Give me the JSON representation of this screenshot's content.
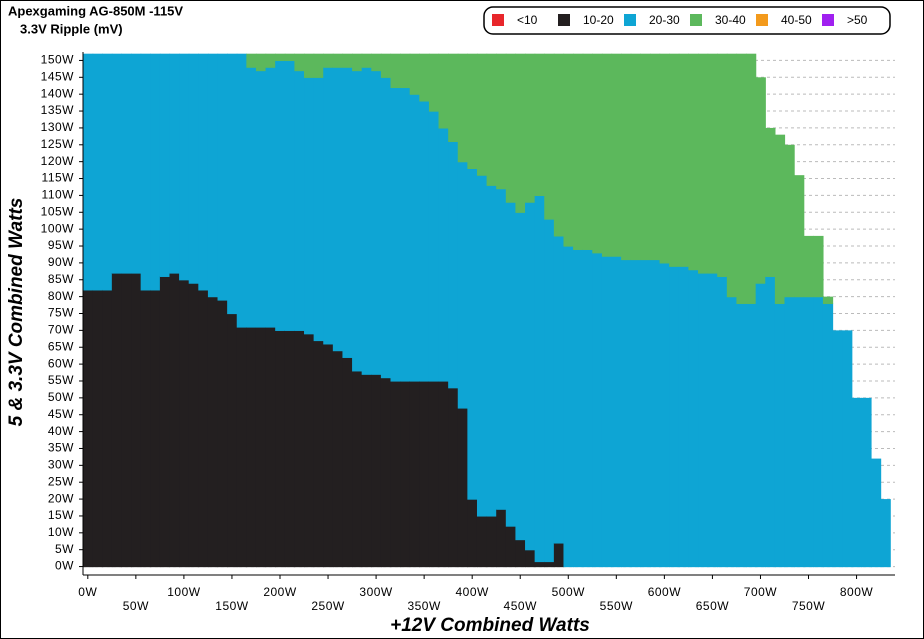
{
  "chart_data": {
    "type": "stacked_columns",
    "title": "Apexgaming AG-850M -115V",
    "subtitle": "3.3V Ripple (mV)",
    "xlabel": "+12V Combined Watts",
    "ylabel": "5 & 3.3V Combined Watts",
    "legend": "upper right",
    "grid": true,
    "xlim": [
      -5,
      840
    ],
    "ylim": [
      -2.5,
      152.5
    ],
    "xticks": [
      {
        "value": 0,
        "label": "0W"
      },
      {
        "value": 50,
        "label": "50W"
      },
      {
        "value": 100,
        "label": "100W"
      },
      {
        "value": 150,
        "label": "150W"
      },
      {
        "value": 200,
        "label": "200W"
      },
      {
        "value": 250,
        "label": "250W"
      },
      {
        "value": 300,
        "label": "300W"
      },
      {
        "value": 350,
        "label": "350W"
      },
      {
        "value": 400,
        "label": "400W"
      },
      {
        "value": 450,
        "label": "450W"
      },
      {
        "value": 500,
        "label": "500W"
      },
      {
        "value": 550,
        "label": "550W"
      },
      {
        "value": 600,
        "label": "600W"
      },
      {
        "value": 650,
        "label": "650W"
      },
      {
        "value": 700,
        "label": "700W"
      },
      {
        "value": 750,
        "label": "750W"
      },
      {
        "value": 800,
        "label": "800W"
      }
    ],
    "yticks": [
      {
        "value": 0,
        "label": "0W"
      },
      {
        "value": 5,
        "label": "5W"
      },
      {
        "value": 10,
        "label": "10W"
      },
      {
        "value": 15,
        "label": "15W"
      },
      {
        "value": 20,
        "label": "20W"
      },
      {
        "value": 25,
        "label": "25W"
      },
      {
        "value": 30,
        "label": "30W"
      },
      {
        "value": 35,
        "label": "35W"
      },
      {
        "value": 40,
        "label": "40W"
      },
      {
        "value": 45,
        "label": "45W"
      },
      {
        "value": 50,
        "label": "50W"
      },
      {
        "value": 55,
        "label": "55W"
      },
      {
        "value": 60,
        "label": "60W"
      },
      {
        "value": 65,
        "label": "65W"
      },
      {
        "value": 70,
        "label": "70W"
      },
      {
        "value": 75,
        "label": "75W"
      },
      {
        "value": 80,
        "label": "80W"
      },
      {
        "value": 85,
        "label": "85W"
      },
      {
        "value": 90,
        "label": "90W"
      },
      {
        "value": 95,
        "label": "95W"
      },
      {
        "value": 100,
        "label": "100W"
      },
      {
        "value": 105,
        "label": "105W"
      },
      {
        "value": 110,
        "label": "110W"
      },
      {
        "value": 115,
        "label": "115W"
      },
      {
        "value": 120,
        "label": "120W"
      },
      {
        "value": 125,
        "label": "125W"
      },
      {
        "value": 130,
        "label": "130W"
      },
      {
        "value": 135,
        "label": "135W"
      },
      {
        "value": 140,
        "label": "140W"
      },
      {
        "value": 145,
        "label": "145W"
      },
      {
        "value": 150,
        "label": "150W"
      }
    ],
    "x": [
      0,
      10,
      20,
      30,
      40,
      50,
      60,
      70,
      80,
      90,
      100,
      110,
      120,
      130,
      140,
      150,
      160,
      170,
      180,
      190,
      200,
      210,
      220,
      230,
      240,
      250,
      260,
      270,
      280,
      290,
      300,
      310,
      320,
      330,
      340,
      350,
      360,
      370,
      380,
      390,
      400,
      410,
      420,
      430,
      440,
      450,
      460,
      470,
      480,
      490,
      500,
      510,
      520,
      530,
      540,
      550,
      560,
      570,
      580,
      590,
      600,
      610,
      620,
      630,
      640,
      650,
      660,
      670,
      680,
      690,
      700,
      710,
      720,
      730,
      740,
      750,
      760,
      770,
      780,
      790,
      800,
      810,
      820,
      830
    ],
    "series": [
      {
        "name": "<10",
        "color": "#e8262b"
      },
      {
        "name": "10-20",
        "color": "#231f20",
        "values": [
          82,
          82,
          82,
          87,
          87,
          87,
          82,
          82,
          86,
          87,
          85,
          84,
          82,
          80,
          79,
          75,
          71,
          71,
          71,
          71,
          70,
          70,
          70,
          69,
          67,
          66,
          64,
          62,
          58,
          57,
          57,
          56,
          55,
          55,
          55,
          55,
          55,
          55,
          53,
          47,
          20,
          15,
          15,
          17,
          12,
          8,
          5,
          1.5,
          1.5,
          7,
          0,
          0,
          0,
          0,
          0,
          0,
          0,
          0,
          0,
          0,
          0,
          0,
          0,
          0,
          0,
          0,
          0,
          0,
          0,
          0,
          0,
          0,
          0,
          0,
          0,
          0,
          0,
          0,
          0,
          0,
          0,
          0,
          0,
          0
        ]
      },
      {
        "name": "20-30",
        "color": "#0ea5d4",
        "values": [
          70,
          70,
          70,
          65,
          65,
          65,
          70,
          70,
          66,
          65,
          67,
          68,
          70,
          72,
          73,
          77,
          81,
          77,
          76,
          77,
          80,
          80,
          77,
          76,
          78,
          82,
          84,
          86,
          89,
          91,
          90,
          89,
          87,
          87,
          85,
          83,
          80,
          75,
          73,
          73,
          98,
          101,
          98,
          95,
          96,
          97,
          103,
          108.5,
          101.5,
          91,
          95,
          94,
          94,
          93,
          92,
          92,
          91,
          91,
          91,
          91,
          90,
          89,
          89,
          88,
          87,
          87,
          86,
          80,
          78,
          78,
          84,
          86,
          78,
          80,
          80,
          80,
          80,
          78,
          70,
          70,
          50,
          50,
          32,
          20
        ]
      },
      {
        "name": "30-40",
        "color": "#5cb85c",
        "values": [
          0,
          0,
          0,
          0,
          0,
          0,
          0,
          0,
          0,
          0,
          0,
          0,
          0,
          0,
          0,
          0,
          0,
          4,
          5,
          4,
          2,
          2,
          5,
          7,
          7,
          4,
          4,
          4,
          5,
          4,
          5,
          7,
          10,
          10,
          12,
          14,
          17,
          22,
          26,
          32,
          34,
          36,
          39,
          40,
          44,
          47,
          44,
          42,
          49,
          54,
          57,
          58,
          58,
          59,
          60,
          60,
          61,
          61,
          61,
          61,
          62,
          63,
          63,
          64,
          65,
          65,
          66,
          72,
          74,
          74,
          61,
          44,
          50,
          45,
          36,
          18,
          18,
          2,
          0,
          0,
          0,
          0,
          0,
          0
        ]
      },
      {
        "name": "40-50",
        "color": "#f39a1c"
      },
      {
        "name": ">50",
        "color": "#a020f0"
      }
    ]
  }
}
